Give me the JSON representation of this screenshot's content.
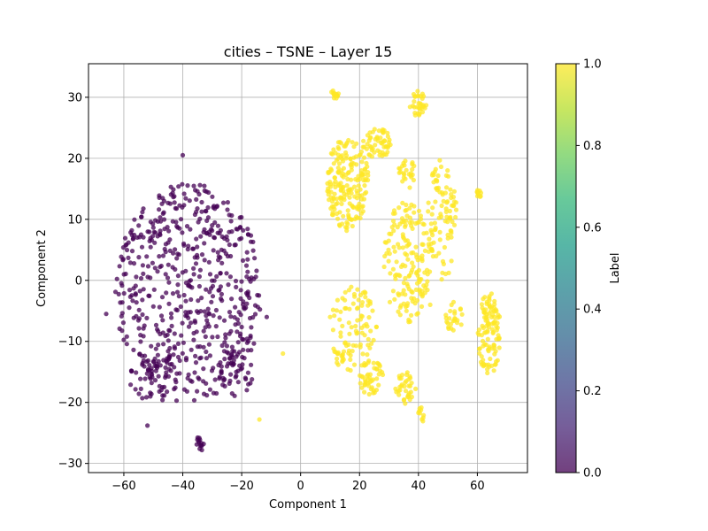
{
  "chart_data": {
    "type": "scatter",
    "title": "cities – TSNE – Layer 15",
    "xlabel": "Component 1",
    "ylabel": "Component 2",
    "xlim": [
      -72,
      77
    ],
    "ylim": [
      -31.5,
      35.5
    ],
    "xticks": [
      -60,
      -40,
      -20,
      0,
      20,
      40,
      60
    ],
    "yticks": [
      -30,
      -20,
      -10,
      0,
      10,
      20,
      30
    ],
    "xtick_labels": [
      "−60",
      "−40",
      "−20",
      "0",
      "20",
      "40",
      "60"
    ],
    "ytick_labels": [
      "−30",
      "−20",
      "−10",
      "0",
      "10",
      "20",
      "30"
    ],
    "grid": true,
    "point_alpha": 0.75,
    "colormap": "viridis",
    "colorbar": {
      "label": "Label",
      "range": [
        0.0,
        1.0
      ],
      "ticks": [
        0.0,
        0.2,
        0.4,
        0.6,
        0.8,
        1.0
      ],
      "tick_labels": [
        "0.0",
        "0.2",
        "0.4",
        "0.6",
        "0.8",
        "1.0"
      ],
      "stops": [
        "#440154",
        "#482878",
        "#3e4989",
        "#31688e",
        "#26828e",
        "#1f9e89",
        "#35b779",
        "#6ece58",
        "#b5de2b",
        "#fde725"
      ]
    },
    "series": [
      {
        "label_value": 0,
        "color": "#440154",
        "clusters": [
          {
            "cx": -38,
            "cy": -2,
            "rx": 25,
            "ry": 18,
            "n": 560
          },
          {
            "cx": -22,
            "cy": -15,
            "rx": 6,
            "ry": 4,
            "n": 40
          },
          {
            "cx": -50,
            "cy": -16,
            "rx": 8,
            "ry": 4,
            "n": 50
          },
          {
            "cx": -34,
            "cy": -26.7,
            "rx": 1.6,
            "ry": 1.2,
            "n": 14
          }
        ],
        "points": [
          [
            -52,
            -23.8
          ],
          [
            -11.5,
            -6
          ],
          [
            -66,
            -5.5
          ],
          [
            -40,
            20.5
          ]
        ]
      },
      {
        "label_value": 1,
        "color": "#fde725",
        "clusters": [
          {
            "cx": 16,
            "cy": 16,
            "rx": 7,
            "ry": 8,
            "n": 190
          },
          {
            "cx": 26,
            "cy": 22.5,
            "rx": 5,
            "ry": 2.5,
            "n": 55
          },
          {
            "cx": 12,
            "cy": 30.5,
            "rx": 1.8,
            "ry": 0.7,
            "n": 14
          },
          {
            "cx": 40,
            "cy": 29,
            "rx": 3,
            "ry": 2.2,
            "n": 32
          },
          {
            "cx": 36,
            "cy": 17.5,
            "rx": 3,
            "ry": 2.5,
            "n": 25
          },
          {
            "cx": 48,
            "cy": 10,
            "rx": 5,
            "ry": 10,
            "n": 95
          },
          {
            "cx": 36,
            "cy": 3,
            "rx": 8,
            "ry": 10,
            "n": 160
          },
          {
            "cx": 18,
            "cy": -8,
            "rx": 8,
            "ry": 7,
            "n": 90
          },
          {
            "cx": 24,
            "cy": -16,
            "rx": 4,
            "ry": 3,
            "n": 45
          },
          {
            "cx": 36,
            "cy": -18,
            "rx": 4,
            "ry": 3,
            "n": 35
          },
          {
            "cx": 41,
            "cy": -22,
            "rx": 1.2,
            "ry": 1.2,
            "n": 10
          },
          {
            "cx": 52,
            "cy": -6,
            "rx": 3,
            "ry": 2.5,
            "n": 25
          },
          {
            "cx": 64,
            "cy": -9,
            "rx": 4,
            "ry": 7,
            "n": 110
          },
          {
            "cx": 60.5,
            "cy": 14.3,
            "rx": 1.3,
            "ry": 0.8,
            "n": 10
          },
          {
            "cx": 13,
            "cy": -12.5,
            "rx": 2,
            "ry": 1.5,
            "n": 12
          }
        ],
        "points": [
          [
            -14,
            -22.8
          ],
          [
            -6,
            -12
          ],
          [
            10,
            -6
          ],
          [
            44,
            -4
          ]
        ]
      }
    ]
  }
}
